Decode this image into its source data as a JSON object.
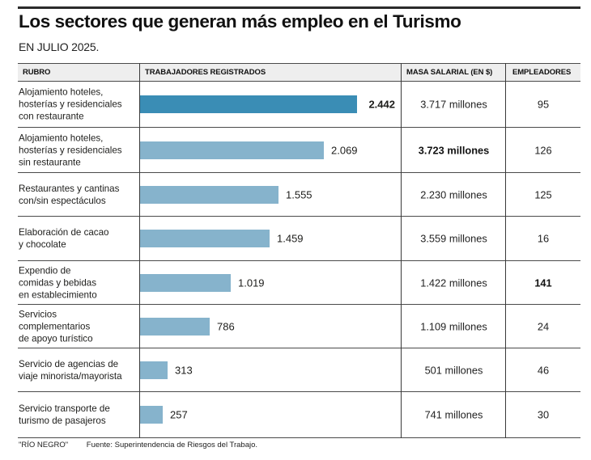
{
  "header": {
    "title": "Los sectores que generan más empleo en el Turismo",
    "subtitle": "EN JULIO 2025."
  },
  "colors": {
    "highlight_bar": "#3a8db5",
    "bar": "#86b3cc"
  },
  "table": {
    "columns": [
      "RUBRO",
      "TRABAJADORES REGISTRADOS",
      "MASA SALARIAL (EN $)",
      "EMPLEADORES"
    ]
  },
  "chart_data": {
    "type": "table",
    "title": "Los sectores que generan más empleo en el Turismo",
    "subtitle": "EN JULIO 2025.",
    "columns": [
      "RUBRO",
      "TRABAJADORES REGISTRADOS",
      "MASA SALARIAL (EN $)",
      "EMPLEADORES"
    ],
    "bar_column": "TRABAJADORES REGISTRADOS",
    "xlim": [
      0,
      2442
    ],
    "rows": [
      {
        "rubro": "Alojamiento hoteles,\nhosterías y residenciales\ncon restaurante",
        "trabajadores": 2442,
        "trabajadores_label": "2.442",
        "masa": "3.717 millones",
        "empleadores": "95",
        "highlight_bar": true,
        "bold_trabajadores": true,
        "bold_masa": false,
        "bold_empleadores": false
      },
      {
        "rubro": "Alojamiento hoteles,\nhosterías y residenciales\nsin restaurante",
        "trabajadores": 2069,
        "trabajadores_label": "2.069",
        "masa": "3.723 millones",
        "empleadores": "126",
        "highlight_bar": false,
        "bold_trabajadores": false,
        "bold_masa": true,
        "bold_empleadores": false
      },
      {
        "rubro": "Restaurantes y cantinas\ncon/sin espectáculos",
        "trabajadores": 1555,
        "trabajadores_label": "1.555",
        "masa": "2.230 millones",
        "empleadores": "125",
        "highlight_bar": false,
        "bold_trabajadores": false,
        "bold_masa": false,
        "bold_empleadores": false
      },
      {
        "rubro": "Elaboración de cacao\ny chocolate",
        "trabajadores": 1459,
        "trabajadores_label": "1.459",
        "masa": "3.559 millones",
        "empleadores": "16",
        "highlight_bar": false,
        "bold_trabajadores": false,
        "bold_masa": false,
        "bold_empleadores": false
      },
      {
        "rubro": "Expendio de\ncomidas y bebidas\nen establecimiento",
        "trabajadores": 1019,
        "trabajadores_label": "1.019",
        "masa": "1.422 millones",
        "empleadores": "141",
        "highlight_bar": false,
        "bold_trabajadores": false,
        "bold_masa": false,
        "bold_empleadores": true
      },
      {
        "rubro": "Servicios\ncomplementarios\nde apoyo turístico",
        "trabajadores": 786,
        "trabajadores_label": "786",
        "masa": "1.109 millones",
        "empleadores": "24",
        "highlight_bar": false,
        "bold_trabajadores": false,
        "bold_masa": false,
        "bold_empleadores": false
      },
      {
        "rubro": "Servicio de agencias de\nviaje minorista/mayorista",
        "trabajadores": 313,
        "trabajadores_label": "313",
        "masa": "501 millones",
        "empleadores": "46",
        "highlight_bar": false,
        "bold_trabajadores": false,
        "bold_masa": false,
        "bold_empleadores": false
      },
      {
        "rubro": "Servicio transporte de\nturismo de pasajeros",
        "trabajadores": 257,
        "trabajadores_label": "257",
        "masa": "741 millones",
        "empleadores": "30",
        "highlight_bar": false,
        "bold_trabajadores": false,
        "bold_masa": false,
        "bold_empleadores": false
      }
    ]
  },
  "footer": {
    "brand": "\"RÍO NEGRO\"",
    "source": "Fuente: Superintendencia de Riesgos del Trabajo."
  }
}
